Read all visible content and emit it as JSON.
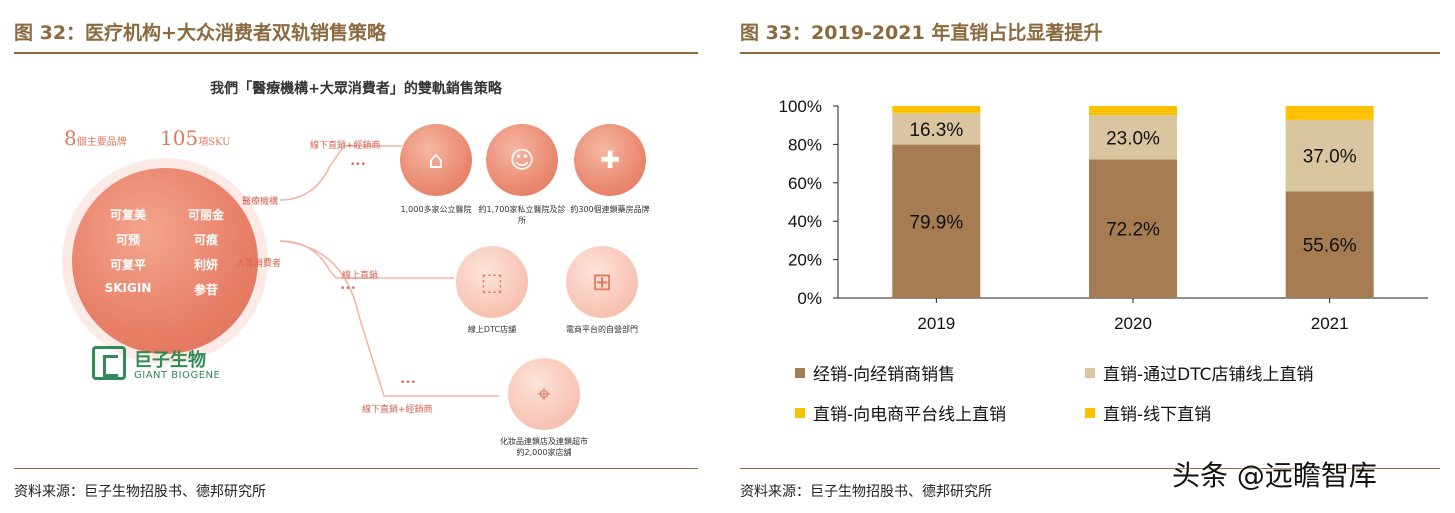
{
  "left": {
    "title": "图 32：医疗机构+大众消费者双轨销售策略",
    "inner_title": "我們「醫療機構+大眾消費者」的雙軌銷售策略",
    "stat1_num": "8",
    "stat1_unit": "個主要品牌",
    "stat2_num": "105",
    "stat2_unit": "項SKU",
    "brands": [
      "可复美",
      "可丽金",
      "可预",
      "可痕",
      "可复平",
      "利妍",
      "SKIGIN",
      "参苷"
    ],
    "logo_cn": "巨子生物",
    "logo_en": "GIANT BIOGENE",
    "channel_medical": "醫療機構",
    "channel_consumer": "大眾消費者",
    "offline_direct_distrib_1": "線下直銷+經銷商",
    "online_direct": "線上直銷",
    "offline_direct_distrib_2": "線下直銷+經銷商",
    "nodes": {
      "public_hospitals": "1,000多家公立醫院",
      "private_clinics": "約1,700家私立醫院及診所",
      "pharmacy_chain": "約300個連鎖藥房品牌",
      "dtc_stores": "線上DTC店舖",
      "ecommerce_self": "電商平台的自營部門",
      "cosmetics_stores": "化妝品連鎖店及連鎖超市約2,000家店舖"
    },
    "dots": "•••",
    "source": "资料来源：巨子生物招股书、德邦研究所"
  },
  "right": {
    "title": "图 33：2019-2021 年直销占比显著提升",
    "source": "资料来源：巨子生物招股书、德邦研究所",
    "legend": [
      {
        "label": "经销-向经销商销售",
        "color": "#a67c52"
      },
      {
        "label": "直销-通过DTC店铺线上直销",
        "color": "#d9c6a0"
      },
      {
        "label": "直销-向电商平台线上直销",
        "color": "#f5c400"
      },
      {
        "label": "直销-线下直销",
        "color": "#ffc000"
      }
    ]
  },
  "chart_data": {
    "type": "bar",
    "stacked": true,
    "categories": [
      "2019",
      "2020",
      "2021"
    ],
    "series": [
      {
        "name": "经销-向经销商销售",
        "values": [
          79.9,
          72.2,
          55.6
        ],
        "color": "#a67c52",
        "labels": [
          "79.9%",
          "72.2%",
          "55.6%"
        ]
      },
      {
        "name": "直销-通过DTC店铺线上直销",
        "values": [
          16.3,
          23.0,
          37.0
        ],
        "color": "#d9c6a0",
        "labels": [
          "16.3%",
          "23.0%",
          "37.0%"
        ]
      },
      {
        "name": "直销-向电商平台线上直销",
        "values": [
          0.3,
          1.6,
          0.5
        ],
        "color": "#f5c400",
        "labels": [
          "",
          "",
          ""
        ]
      },
      {
        "name": "直销-线下直销",
        "values": [
          3.5,
          3.2,
          6.9
        ],
        "color": "#ffc000",
        "labels": [
          "",
          "",
          ""
        ]
      }
    ],
    "yticks": [
      "0%",
      "20%",
      "40%",
      "60%",
      "80%",
      "100%"
    ],
    "ylim": [
      0,
      100
    ],
    "grid": false,
    "legend_position": "bottom"
  },
  "watermark": "头条 @远瞻智库"
}
